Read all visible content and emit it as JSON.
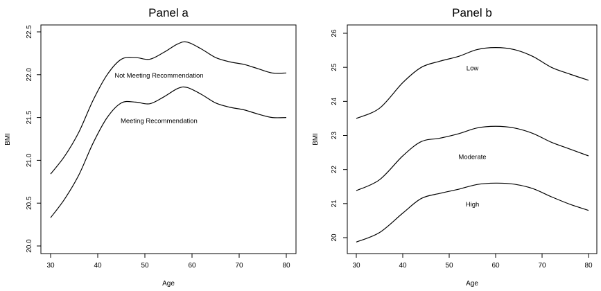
{
  "chart_data": [
    {
      "type": "line",
      "title": "Panel a",
      "xlabel": "Age",
      "ylabel": "BMI",
      "xlim": [
        30,
        80
      ],
      "ylim": [
        20.0,
        22.5
      ],
      "xticks": [
        30,
        40,
        50,
        60,
        70,
        80
      ],
      "yticks": [
        "20.0",
        "20.5",
        "21.0",
        "21.5",
        "22.0",
        "22.5"
      ],
      "grid": false,
      "series": [
        {
          "name": "Not Meeting Recommendation",
          "x": [
            30,
            33,
            36,
            39,
            42,
            45,
            48,
            51,
            54,
            57,
            59,
            62,
            65,
            68,
            71,
            74,
            77,
            80
          ],
          "y": [
            20.84,
            21.05,
            21.33,
            21.7,
            22.0,
            22.18,
            22.2,
            22.18,
            22.26,
            22.36,
            22.38,
            22.3,
            22.2,
            22.15,
            22.12,
            22.07,
            22.02,
            22.02
          ],
          "label_at": [
            53,
            21.99
          ]
        },
        {
          "name": "Meeting Recommendation",
          "x": [
            30,
            33,
            36,
            39,
            42,
            45,
            48,
            51,
            54,
            57,
            59,
            62,
            65,
            68,
            71,
            74,
            77,
            80
          ],
          "y": [
            20.33,
            20.55,
            20.83,
            21.2,
            21.5,
            21.67,
            21.68,
            21.66,
            21.74,
            21.84,
            21.85,
            21.77,
            21.67,
            21.62,
            21.59,
            21.54,
            21.5,
            21.5
          ],
          "label_at": [
            53,
            21.46
          ]
        }
      ]
    },
    {
      "type": "line",
      "title": "Panel b",
      "xlabel": "Age",
      "ylabel": "BMI",
      "xlim": [
        30,
        80
      ],
      "ylim": [
        20,
        26
      ],
      "xticks": [
        30,
        40,
        50,
        60,
        70,
        80
      ],
      "yticks": [
        "20",
        "21",
        "22",
        "23",
        "24",
        "25",
        "26"
      ],
      "grid": false,
      "series": [
        {
          "name": "Low",
          "x": [
            30,
            35,
            40,
            44,
            48,
            52,
            56,
            60,
            64,
            68,
            72,
            76,
            80
          ],
          "y": [
            23.5,
            23.8,
            24.55,
            25.0,
            25.18,
            25.32,
            25.52,
            25.58,
            25.52,
            25.32,
            25.0,
            24.8,
            24.62
          ],
          "label_at": [
            55,
            24.97
          ]
        },
        {
          "name": "Moderate",
          "x": [
            30,
            35,
            40,
            44,
            48,
            52,
            56,
            60,
            64,
            68,
            72,
            76,
            80
          ],
          "y": [
            21.38,
            21.7,
            22.4,
            22.82,
            22.92,
            23.05,
            23.22,
            23.27,
            23.22,
            23.06,
            22.8,
            22.6,
            22.4
          ],
          "label_at": [
            55,
            22.37
          ]
        },
        {
          "name": "High",
          "x": [
            30,
            35,
            40,
            44,
            48,
            52,
            56,
            60,
            64,
            68,
            72,
            76,
            80
          ],
          "y": [
            19.87,
            20.15,
            20.72,
            21.15,
            21.3,
            21.42,
            21.56,
            21.6,
            21.57,
            21.44,
            21.2,
            20.98,
            20.8
          ],
          "label_at": [
            55,
            20.98
          ]
        }
      ]
    }
  ]
}
